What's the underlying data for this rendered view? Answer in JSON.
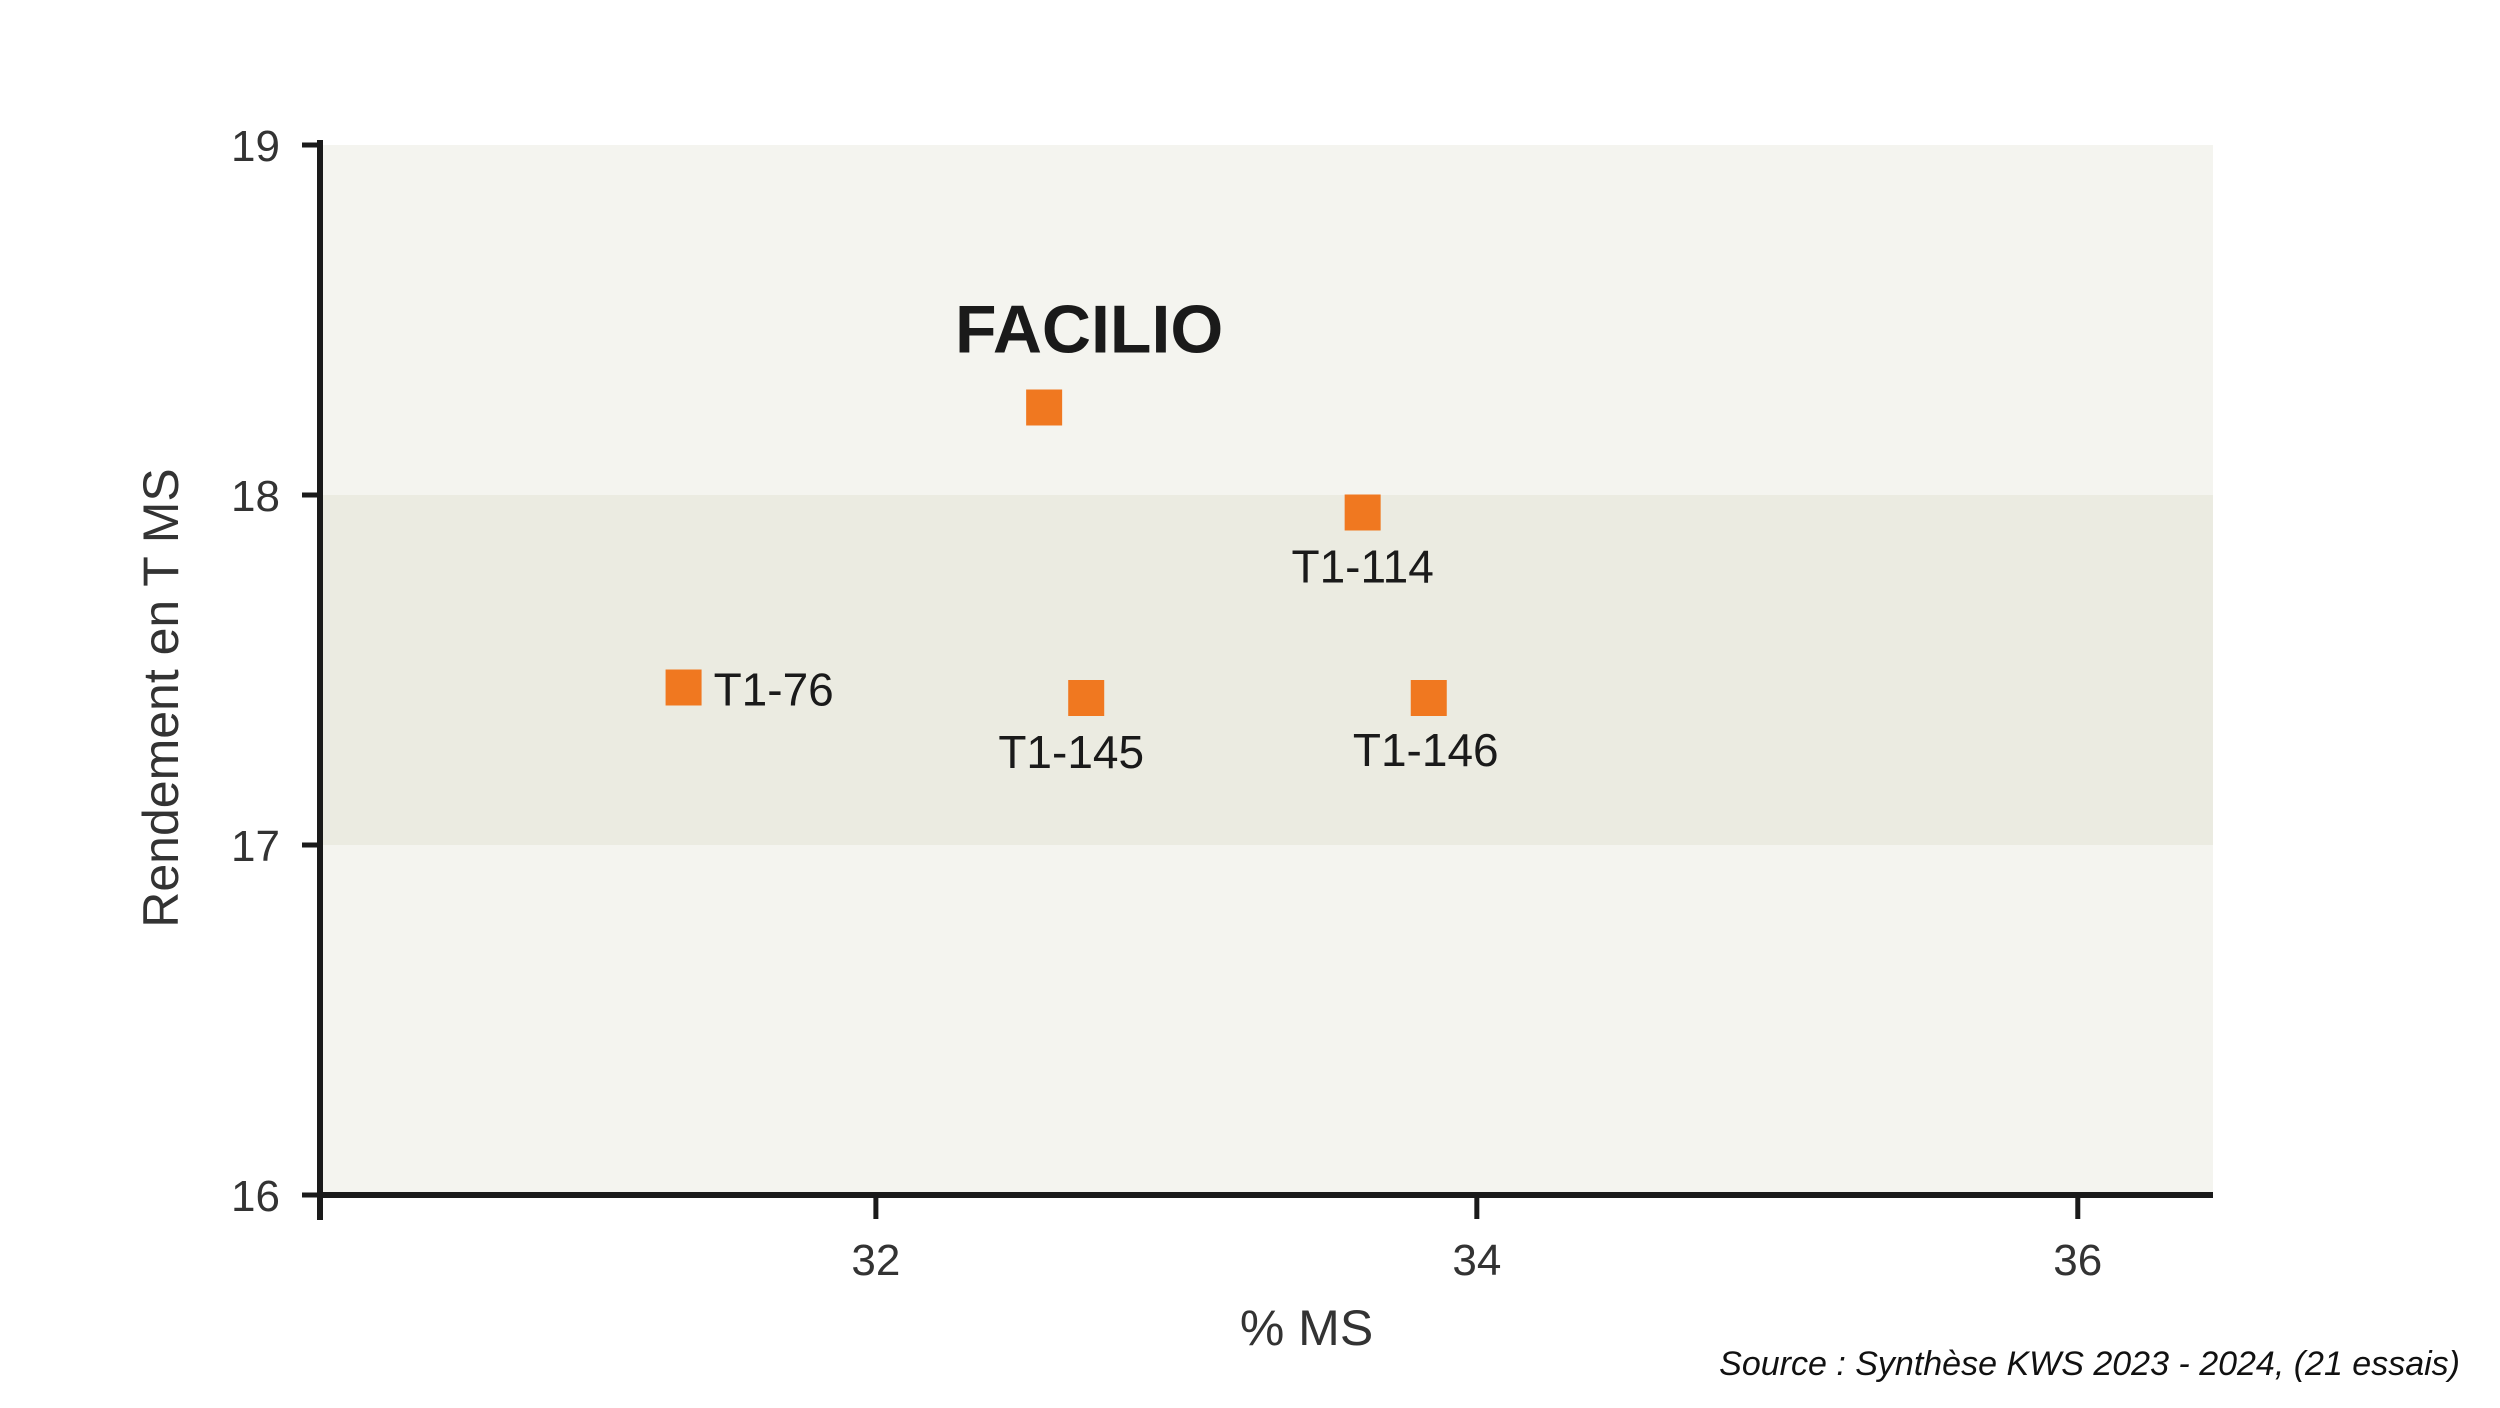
{
  "chart_data": {
    "type": "scatter",
    "title": "",
    "xlabel": "% MS",
    "ylabel": "Rendement en T MS",
    "xlim": [
      30.15,
      36.45
    ],
    "ylim": [
      16,
      19
    ],
    "xticks": [
      32,
      34,
      36
    ],
    "yticks": [
      16,
      17,
      18,
      19
    ],
    "band": {
      "y_from": 17,
      "y_to": 18
    },
    "grid": false,
    "points": [
      {
        "label": "FACILIO",
        "x": 32.56,
        "y": 18.25,
        "highlight": true
      },
      {
        "label": "T1-114",
        "x": 33.62,
        "y": 17.95,
        "highlight": false
      },
      {
        "label": "T1-76",
        "x": 31.36,
        "y": 17.45,
        "highlight": false
      },
      {
        "label": "T1-145",
        "x": 32.7,
        "y": 17.42,
        "highlight": false
      },
      {
        "label": "T1-146",
        "x": 33.84,
        "y": 17.42,
        "highlight": false
      }
    ]
  },
  "colors": {
    "marker": "#f07820",
    "highlight_label": "#f07820",
    "plot_background": "#f4f4ef",
    "band": "#ebebe1",
    "axis": "#1a1a1a"
  },
  "source": "Source : Synthèse KWS 2023 - 2024, (21 essais)"
}
